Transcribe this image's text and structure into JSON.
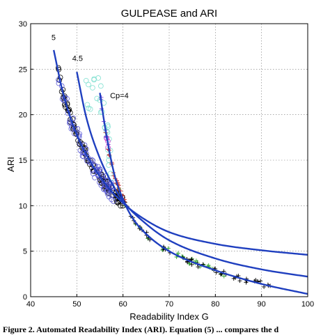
{
  "chart_data": {
    "type": "scatter",
    "title": "GULPEASE and ARI",
    "xlabel": "Readability Index G",
    "ylabel": "ARI",
    "xlim": [
      40,
      100
    ],
    "ylim": [
      0,
      30
    ],
    "xticks": [
      40,
      50,
      60,
      70,
      80,
      90,
      100
    ],
    "yticks": [
      0,
      5,
      10,
      15,
      20,
      25,
      30
    ],
    "grid": true,
    "curves": [
      {
        "label": "5",
        "color": "#1f3fbf",
        "x0": 45,
        "x1": 100,
        "label_at": [
          44.5,
          28.2
        ],
        "k": 0.7,
        "points": [
          [
            45,
            27.1
          ],
          [
            47,
            22.4
          ],
          [
            50,
            17.8
          ],
          [
            55,
            13.2
          ],
          [
            60,
            10.3
          ],
          [
            65,
            8.4
          ],
          [
            70,
            7.1
          ],
          [
            80,
            5.8
          ],
          [
            90,
            5.1
          ],
          [
            100,
            4.6
          ]
        ]
      },
      {
        "label": "4.5",
        "color": "#1f3fbf",
        "x0": 50,
        "x1": 100,
        "label_at": [
          49.0,
          25.9
        ],
        "k": 1.6,
        "points": [
          [
            50,
            24.7
          ],
          [
            52,
            19.8
          ],
          [
            55,
            15.2
          ],
          [
            58,
            12.1
          ],
          [
            60,
            10.5
          ],
          [
            65,
            8.0
          ],
          [
            70,
            6.2
          ],
          [
            80,
            4.2
          ],
          [
            90,
            3.0
          ],
          [
            100,
            2.2
          ]
        ]
      },
      {
        "label": "Cp=4",
        "color": "#1f3fbf",
        "x0": 55,
        "x1": 100,
        "label_at": [
          57.2,
          21.8
        ],
        "k": 2.6,
        "points": [
          [
            55,
            22.4
          ],
          [
            56,
            19.0
          ],
          [
            58,
            13.7
          ],
          [
            60,
            10.7
          ],
          [
            62,
            8.7
          ],
          [
            65,
            6.9
          ],
          [
            70,
            5.0
          ],
          [
            80,
            2.9
          ],
          [
            90,
            1.4
          ],
          [
            100,
            0.3
          ]
        ]
      }
    ],
    "series": [
      {
        "marker": "circle",
        "color": "#000000",
        "n": 120,
        "x": [
          46,
          60
        ],
        "along": "curve-1",
        "spread": 0.6
      },
      {
        "marker": "circle",
        "color": "#5b5bd6",
        "n": 80,
        "x": [
          46,
          58
        ],
        "along": "curve-1",
        "spread": 1.0
      },
      {
        "marker": "circle",
        "color": "#7fe0d0",
        "n": 30,
        "x": [
          52,
          58
        ],
        "along": "curve-3",
        "spread": 2.0
      },
      {
        "marker": "circle",
        "color": "#d048d0",
        "n": 4,
        "x": [
          55,
          57
        ],
        "along": "curve-3",
        "spread": 0.6
      },
      {
        "marker": "plus",
        "color": "#c42a2a",
        "n": 25,
        "x": [
          56,
          61
        ],
        "along": "curve-3",
        "spread": 0.6
      },
      {
        "marker": "plus",
        "color": "#7a3ad6",
        "n": 8,
        "x": [
          55,
          58
        ],
        "along": "curve-3",
        "spread": 0.8
      },
      {
        "marker": "plus",
        "color": "#2aa02a",
        "n": 30,
        "x": [
          58,
          82
        ],
        "along": "curve-3",
        "spread": 0.35
      },
      {
        "marker": "plus",
        "color": "#000000",
        "n": 55,
        "x": [
          60,
          92
        ],
        "along": "curve-3",
        "spread": 0.3
      }
    ]
  },
  "caption": "Figure 2. Automated Readability Index (ARI). Equation (5) ... compares the d"
}
